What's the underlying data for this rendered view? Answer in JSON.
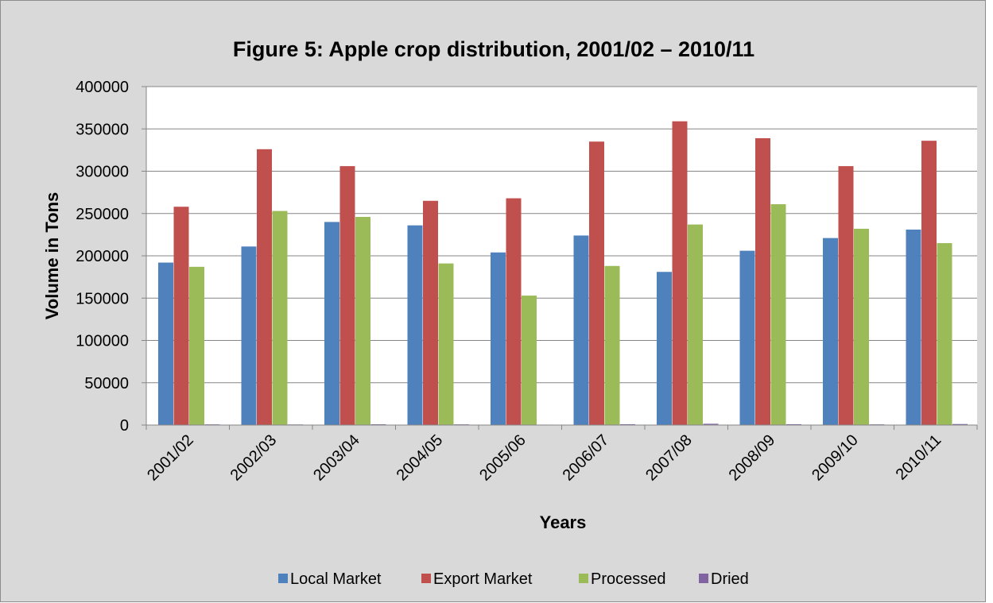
{
  "chart_data": {
    "type": "bar",
    "title": "Figure 5: Apple crop distribution, 2001/02 – 2010/11",
    "xlabel": "Years",
    "ylabel": "Volume in Tons",
    "ylim": [
      0,
      400000
    ],
    "yticks": [
      0,
      50000,
      100000,
      150000,
      200000,
      250000,
      300000,
      350000,
      400000
    ],
    "grid": true,
    "legend_position": "bottom",
    "categories": [
      "2001/02",
      "2002/03",
      "2003/04",
      "2004/05",
      "2005/06",
      "2006/07",
      "2007/08",
      "2008/09",
      "2009/10",
      "2010/11"
    ],
    "series": [
      {
        "name": "Local Market",
        "color": "#4f81bd",
        "values": [
          192000,
          211000,
          240000,
          236000,
          204000,
          224000,
          181000,
          206000,
          221000,
          231000
        ]
      },
      {
        "name": "Export Market",
        "color": "#c0504d",
        "values": [
          258000,
          326000,
          306000,
          265000,
          268000,
          335000,
          359000,
          339000,
          306000,
          336000
        ]
      },
      {
        "name": "Processed",
        "color": "#9bbb59",
        "values": [
          187000,
          253000,
          246000,
          191000,
          153000,
          188000,
          237000,
          261000,
          232000,
          215000
        ]
      },
      {
        "name": "Dried",
        "color": "#8064a2",
        "values": [
          800,
          700,
          900,
          800,
          500,
          1000,
          1500,
          1000,
          800,
          1200
        ]
      }
    ]
  }
}
